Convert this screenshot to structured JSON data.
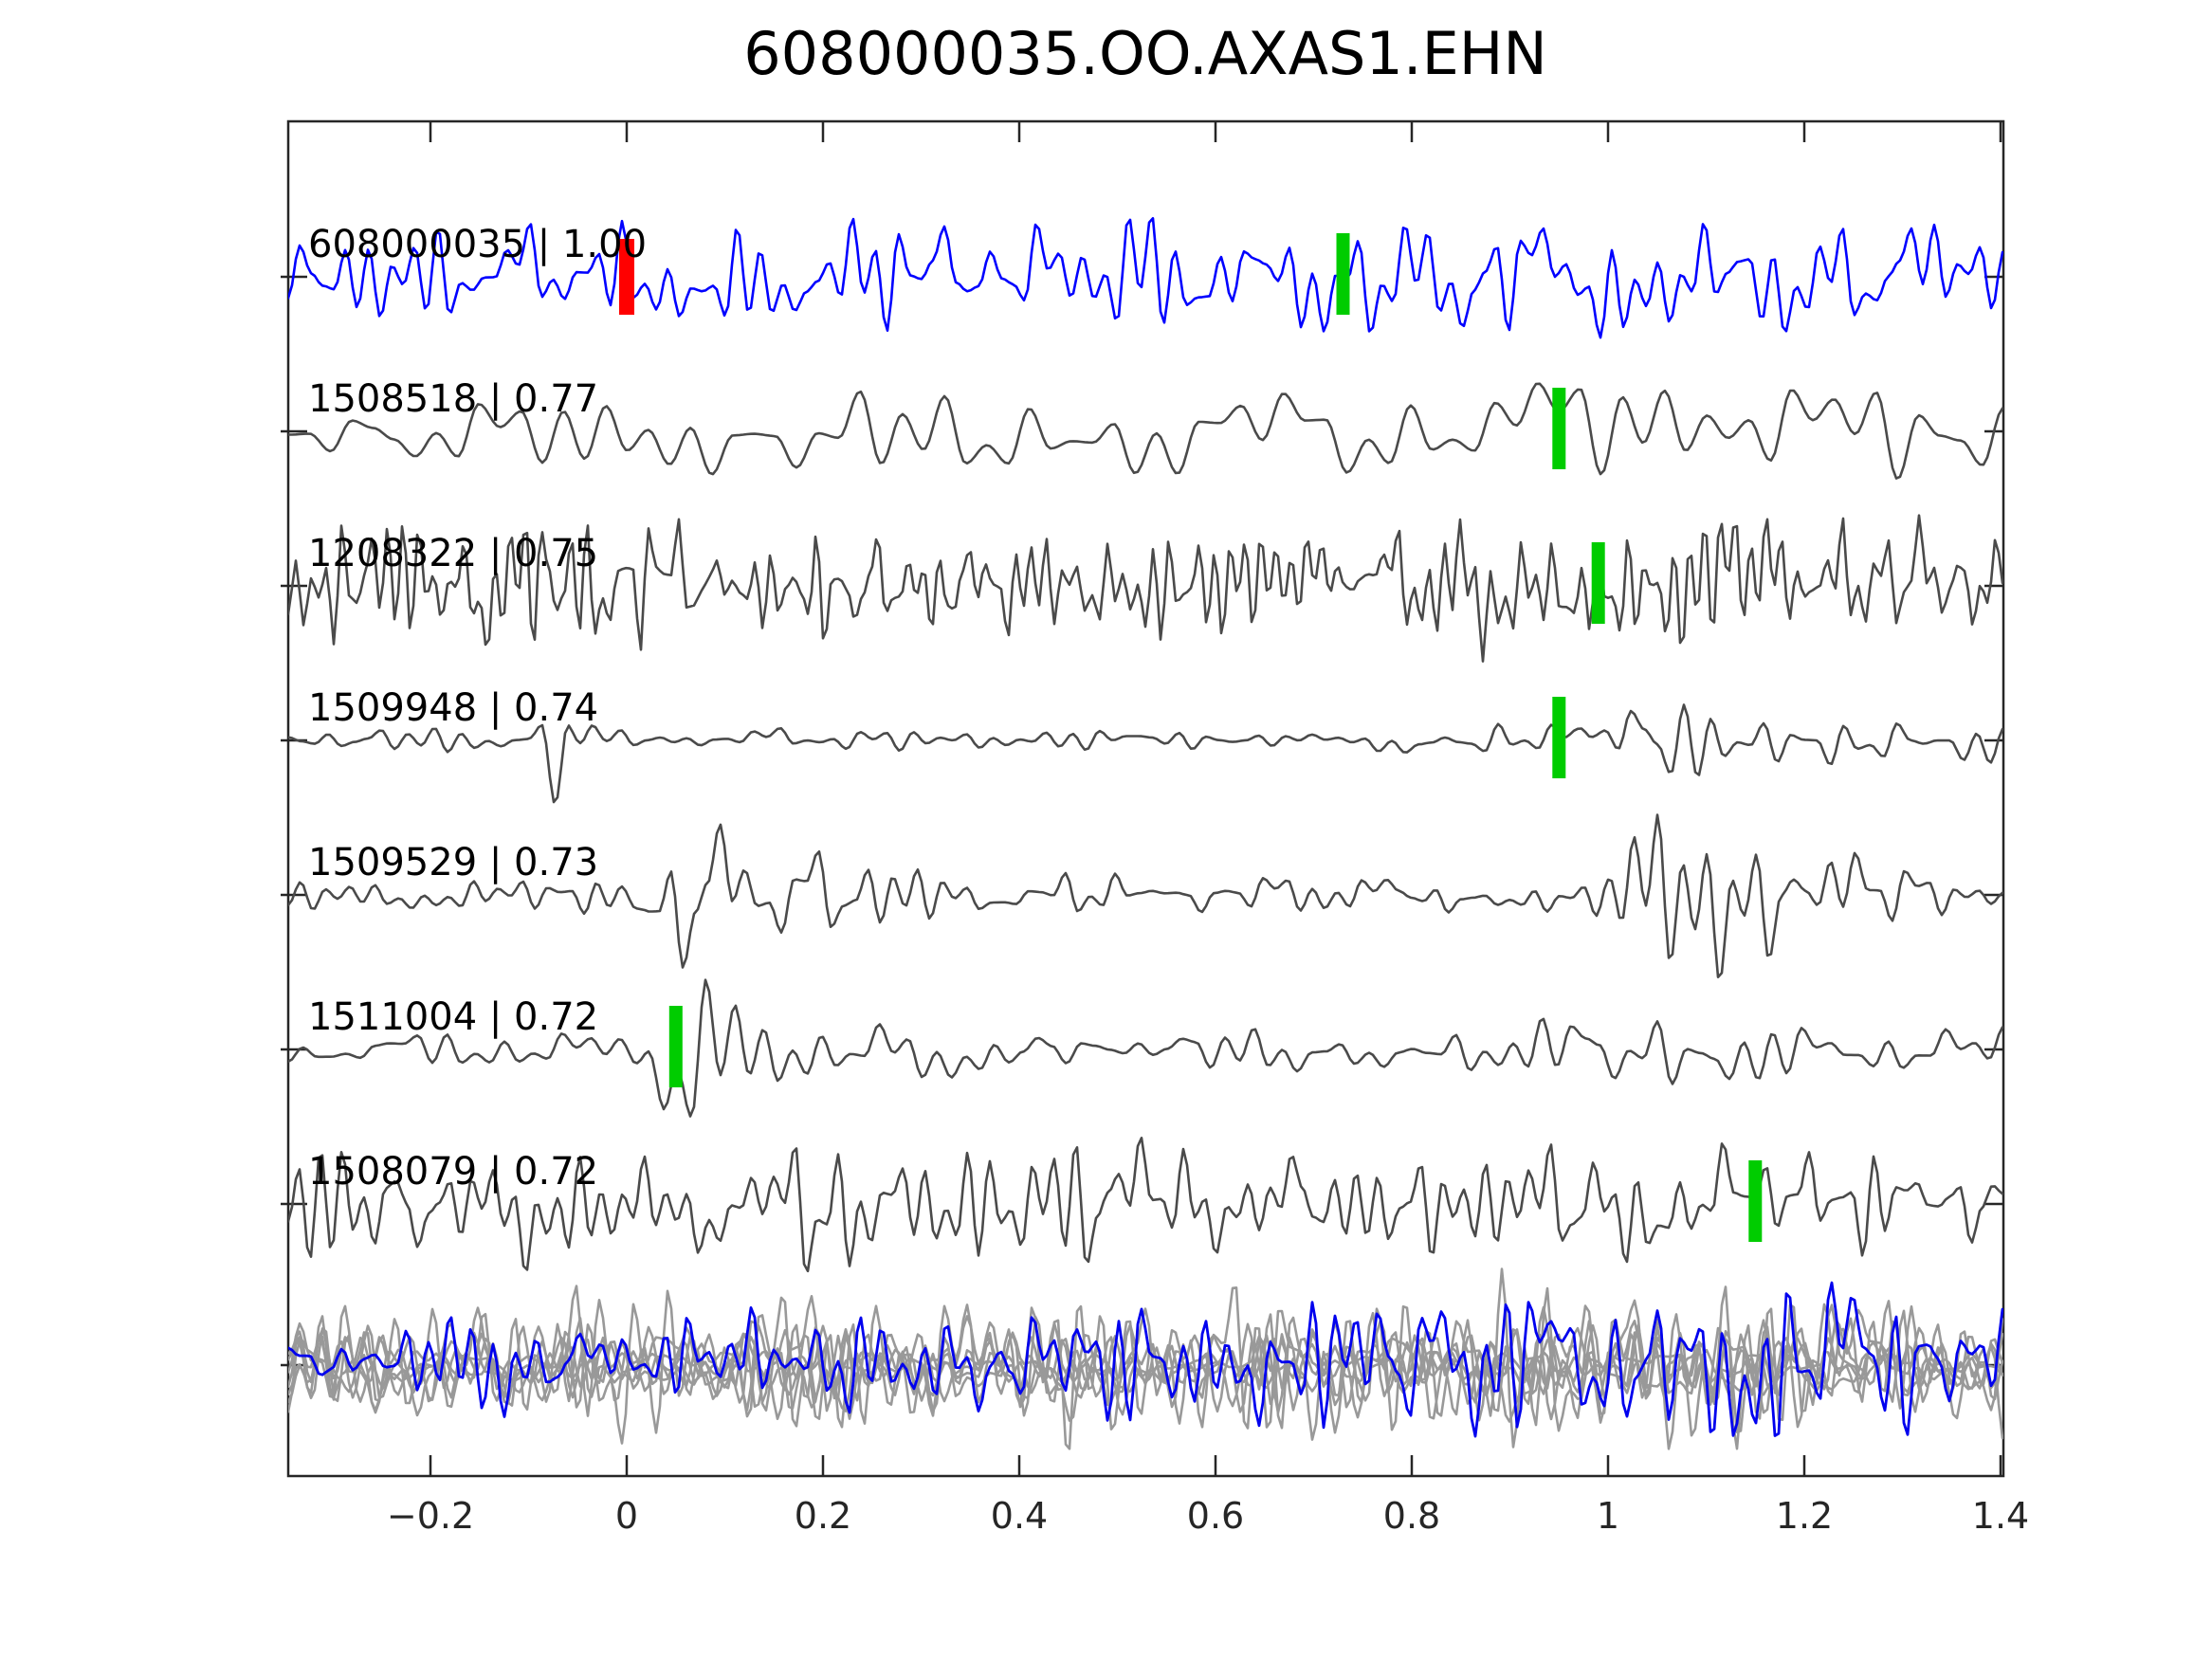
{
  "title": "608000035.OO.AXAS1.EHN",
  "chart_data": {
    "type": "line",
    "title": "608000035.OO.AXAS1.EHN",
    "xlabel": "",
    "ylabel": "",
    "xlim": [
      -0.345,
      1.405
    ],
    "x_ticks": [
      "−0.2",
      "0",
      "0.2",
      "0.4",
      "0.6",
      "0.8",
      "1",
      "1.2",
      "1.4"
    ],
    "x_tick_values": [
      -0.2,
      0,
      0.2,
      0.4,
      0.6,
      0.8,
      1,
      1.2,
      1.4
    ],
    "grid": false,
    "legend": false,
    "colors": {
      "reference_trace": "#0000ff",
      "match_trace": "#4a4a4a",
      "overlay_trace": "#999999",
      "overlay_reference": "#0000ee",
      "pick_marker": "#00cc00",
      "origin_marker": "#ff0000",
      "axis": "#262626",
      "text": "#000000"
    },
    "traces": [
      {
        "id": "608000035",
        "similarity": "1.00",
        "label": "608000035 | 1.00",
        "style": "reference",
        "picks": [
          {
            "x": 0.0,
            "kind": "origin",
            "color": "red"
          },
          {
            "x": 0.73,
            "kind": "pick",
            "color": "green"
          }
        ],
        "gen": {
          "seed": 11,
          "points": 150,
          "amp": 54,
          "env": [
            [
              -0.35,
              1.0
            ],
            [
              1.41,
              1.0
            ]
          ]
        }
      },
      {
        "id": "1508518",
        "similarity": "0.77",
        "label": "1508518 | 0.77",
        "style": "match",
        "picks": [
          {
            "x": 0.95,
            "kind": "pick",
            "color": "green"
          }
        ],
        "gen": {
          "seed": 22,
          "points": 82,
          "amp": 46,
          "env": [
            [
              -0.35,
              0.55
            ],
            [
              0.1,
              0.9
            ],
            [
              0.35,
              1.0
            ],
            [
              0.6,
              0.85
            ],
            [
              0.8,
              0.95
            ],
            [
              0.93,
              1.35
            ],
            [
              1.0,
              1.5
            ],
            [
              1.1,
              1.2
            ],
            [
              1.25,
              1.05
            ],
            [
              1.41,
              0.9
            ]
          ]
        }
      },
      {
        "id": "1208322",
        "similarity": "0.75",
        "label": "1208322 | 0.75",
        "style": "match",
        "picks": [
          {
            "x": 0.99,
            "kind": "pick",
            "color": "green"
          }
        ],
        "gen": {
          "seed": 33,
          "points": 225,
          "amp": 58,
          "env": [
            [
              -0.35,
              1.15
            ],
            [
              0.3,
              1.0
            ],
            [
              0.8,
              1.05
            ],
            [
              1.41,
              1.1
            ]
          ]
        }
      },
      {
        "id": "1509948",
        "similarity": "0.74",
        "label": "1509948 | 0.74",
        "style": "match",
        "picks": [
          {
            "x": 0.95,
            "kind": "pick",
            "color": "green"
          }
        ],
        "gen": {
          "seed": 44,
          "points": 130,
          "amp": 55,
          "env": [
            [
              -0.35,
              0.3
            ],
            [
              -0.1,
              0.25
            ],
            [
              -0.06,
              1.5
            ],
            [
              -0.02,
              0.3
            ],
            [
              0.3,
              0.18
            ],
            [
              0.7,
              0.18
            ],
            [
              0.88,
              0.25
            ],
            [
              0.97,
              0.3
            ],
            [
              1.02,
              1.3
            ],
            [
              1.08,
              0.9
            ],
            [
              1.18,
              0.5
            ],
            [
              1.3,
              0.35
            ],
            [
              1.41,
              0.45
            ]
          ]
        }
      },
      {
        "id": "1509529",
        "similarity": "0.73",
        "label": "1509529 | 0.73",
        "style": "match",
        "picks": [],
        "gen": {
          "seed": 55,
          "points": 140,
          "amp": 55,
          "env": [
            [
              -0.35,
              0.3
            ],
            [
              0.0,
              0.35
            ],
            [
              0.05,
              1.6
            ],
            [
              0.1,
              1.4
            ],
            [
              0.2,
              0.7
            ],
            [
              0.35,
              0.45
            ],
            [
              0.6,
              0.3
            ],
            [
              0.85,
              0.3
            ],
            [
              1.0,
              0.35
            ],
            [
              1.05,
              1.7
            ],
            [
              1.12,
              1.3
            ],
            [
              1.2,
              0.9
            ],
            [
              1.3,
              0.5
            ],
            [
              1.41,
              0.45
            ]
          ]
        }
      },
      {
        "id": "1511004",
        "similarity": "0.72",
        "label": "1511004 | 0.72",
        "style": "match",
        "picks": [
          {
            "x": 0.05,
            "kind": "pick",
            "color": "green"
          }
        ],
        "gen": {
          "seed": 66,
          "points": 120,
          "amp": 50,
          "env": [
            [
              -0.35,
              0.35
            ],
            [
              0.0,
              0.4
            ],
            [
              0.04,
              1.8
            ],
            [
              0.1,
              1.0
            ],
            [
              0.2,
              0.5
            ],
            [
              0.45,
              0.55
            ],
            [
              0.7,
              0.5
            ],
            [
              0.95,
              0.55
            ],
            [
              1.1,
              0.8
            ],
            [
              1.2,
              0.5
            ],
            [
              1.3,
              0.4
            ],
            [
              1.41,
              0.45
            ]
          ]
        }
      },
      {
        "id": "1508079",
        "similarity": "0.72",
        "label": "1508079 | 0.72",
        "style": "match",
        "picks": [
          {
            "x": 1.15,
            "kind": "pick",
            "color": "green"
          }
        ],
        "gen": {
          "seed": 77,
          "points": 160,
          "amp": 56,
          "env": [
            [
              -0.35,
              0.95
            ],
            [
              0.3,
              1.1
            ],
            [
              0.6,
              0.95
            ],
            [
              0.9,
              0.9
            ],
            [
              1.08,
              1.4
            ],
            [
              1.18,
              1.1
            ],
            [
              1.3,
              0.95
            ],
            [
              1.41,
              1.0
            ]
          ]
        }
      }
    ],
    "overlay": {
      "description": "all aligned traces overplotted, reference in blue",
      "gray_traces": [
        {
          "seed": 101,
          "points": 160,
          "amp": 52,
          "env": [
            [
              -0.35,
              0.9
            ],
            [
              0.5,
              1.0
            ],
            [
              1.41,
              1.1
            ]
          ]
        },
        {
          "seed": 102,
          "points": 150,
          "amp": 62,
          "env": [
            [
              -0.35,
              0.7
            ],
            [
              0.1,
              1.25
            ],
            [
              0.6,
              0.9
            ],
            [
              1.0,
              1.15
            ],
            [
              1.41,
              1.0
            ]
          ]
        },
        {
          "seed": 103,
          "points": 170,
          "amp": 34,
          "env": [
            [
              -0.35,
              1.0
            ],
            [
              1.41,
              1.0
            ]
          ]
        },
        {
          "seed": 104,
          "points": 155,
          "amp": 68,
          "env": [
            [
              -0.35,
              0.8
            ],
            [
              0.3,
              1.1
            ],
            [
              0.9,
              1.2
            ],
            [
              1.41,
              1.0
            ]
          ]
        },
        {
          "seed": 105,
          "points": 165,
          "amp": 26,
          "env": [
            [
              -0.35,
              1.0
            ],
            [
              1.41,
              1.0
            ]
          ]
        },
        {
          "seed": 106,
          "points": 145,
          "amp": 48,
          "env": [
            [
              -0.35,
              0.9
            ],
            [
              0.7,
              1.0
            ],
            [
              1.2,
              1.2
            ],
            [
              1.41,
              1.0
            ]
          ]
        },
        {
          "seed": 107,
          "points": 158,
          "amp": 42,
          "env": [
            [
              -0.35,
              1.0
            ],
            [
              0.5,
              0.9
            ],
            [
              1.41,
              1.1
            ]
          ]
        }
      ],
      "blue_trace": {
        "seed": 120,
        "points": 160,
        "amp": 58,
        "env": [
          [
            -0.35,
            0.75
          ],
          [
            0.3,
            0.9
          ],
          [
            0.7,
            1.1
          ],
          [
            1.1,
            1.3
          ],
          [
            1.41,
            1.2
          ]
        ]
      }
    }
  }
}
